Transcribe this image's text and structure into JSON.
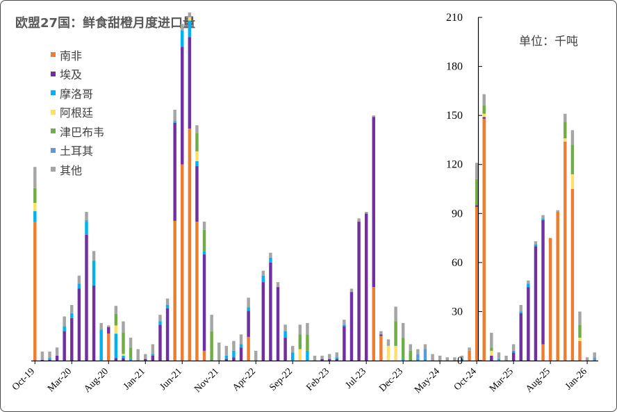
{
  "title": "欧盟27国：鲜食甜橙月度进口量",
  "unit_label": "单位：千吨",
  "chart_data": {
    "type": "bar",
    "stacked": true,
    "yaxis_side": "right",
    "ylim": [
      0,
      210
    ],
    "yticks": [
      0,
      30,
      60,
      90,
      120,
      150,
      180,
      210
    ],
    "legend_position": "top-left",
    "grid": false,
    "categories": [
      "Oct-19",
      "Nov-19",
      "Dec-19",
      "Jan-20",
      "Feb-20",
      "Mar-20",
      "Apr-20",
      "May-20",
      "Jun-20",
      "Jul-20",
      "Aug-20",
      "Sep-20",
      "Oct-20",
      "Nov-20",
      "Dec-20",
      "Jan-21",
      "Feb-21",
      "Mar-21",
      "Apr-21",
      "May-21",
      "Jun-21",
      "Jul-21",
      "Aug-21",
      "Sep-21",
      "Oct-21",
      "Nov-21",
      "Dec-21",
      "Jan-22",
      "Feb-22",
      "Mar-22",
      "Apr-22",
      "May-22",
      "Jun-22",
      "Jul-22",
      "Aug-22",
      "Sep-22",
      "Oct-22",
      "Nov-22",
      "Dec-22",
      "Jan-23",
      "Feb-23",
      "Mar-23",
      "Apr-23",
      "May-23",
      "Jun-23",
      "Jul-23",
      "Aug-23",
      "Sep-23",
      "Oct-23",
      "Nov-23",
      "Dec-23",
      "Jan-24",
      "Feb-24",
      "Mar-24",
      "Apr-24",
      "May-24",
      "Jun-24",
      "Jul-24",
      "Aug-24",
      "Sep-24",
      "Oct-24",
      "Nov-24",
      "Dec-24",
      "Jan-25",
      "Feb-25",
      "Mar-25",
      "Apr-25",
      "May-25",
      "Jun-25",
      "Jul-25",
      "Aug-25",
      "Sep-25",
      "Oct-25",
      "Nov-25",
      "Dec-25",
      "Jan-26",
      "Feb-26"
    ],
    "xtick_labels": [
      {
        "index": 0,
        "label": "Oct-19"
      },
      {
        "index": 5,
        "label": "Mar-20"
      },
      {
        "index": 10,
        "label": "Aug-20"
      },
      {
        "index": 15,
        "label": "Jan-21"
      },
      {
        "index": 20,
        "label": "Jun-21"
      },
      {
        "index": 25,
        "label": "Nov-21"
      },
      {
        "index": 30,
        "label": "Apr-22"
      },
      {
        "index": 35,
        "label": "Sep-22"
      },
      {
        "index": 40,
        "label": "Feb-23"
      },
      {
        "index": 45,
        "label": "Jul-23"
      },
      {
        "index": 50,
        "label": "Dec-23"
      },
      {
        "index": 55,
        "label": "May-24"
      },
      {
        "index": 60,
        "label": "Oct-24"
      },
      {
        "index": 65,
        "label": "Mar-25"
      },
      {
        "index": 70,
        "label": "Aug-25"
      },
      {
        "index": 75,
        "label": "Jan-26"
      }
    ],
    "series": [
      {
        "name": "南非",
        "color": "#ED7D31",
        "values": [
          85,
          0,
          0,
          0,
          0,
          0,
          0,
          0,
          0,
          0,
          16.5,
          0,
          0,
          0,
          0,
          0,
          0,
          0,
          0,
          85.5,
          120,
          142,
          85,
          6,
          0,
          0,
          0,
          0,
          0,
          14.5,
          0,
          0,
          0,
          0,
          0,
          0,
          0,
          0,
          0,
          0,
          0,
          0,
          0,
          0,
          0,
          0,
          45,
          15,
          0,
          0,
          0,
          0,
          0,
          0,
          0,
          0,
          0,
          0,
          0,
          6,
          94,
          148,
          0,
          0,
          0,
          0,
          0,
          0,
          0,
          10,
          75,
          91,
          134,
          105,
          12,
          0,
          0
        ]
      },
      {
        "name": "埃及",
        "color": "#7030A0",
        "values": [
          0,
          0.5,
          0.5,
          3,
          18,
          26,
          44,
          77,
          46,
          0,
          4,
          1.5,
          1.5,
          0,
          0,
          1,
          3,
          22,
          32,
          60,
          72,
          56,
          34,
          59,
          0,
          0,
          1,
          2,
          8,
          16,
          0,
          48,
          60,
          45,
          14,
          0,
          0,
          0,
          0,
          1,
          1,
          1,
          21,
          42,
          85,
          90,
          104,
          1,
          0,
          0,
          0,
          0,
          0,
          0,
          0,
          0,
          0,
          0,
          0,
          0,
          1,
          1,
          3,
          0,
          0,
          5,
          29,
          45,
          70,
          76,
          0,
          0,
          0,
          0,
          0,
          0,
          0
        ]
      },
      {
        "name": "摩洛哥",
        "color": "#00B0F0",
        "values": [
          6.5,
          0,
          1,
          0,
          3,
          3,
          3,
          8,
          15,
          19,
          0,
          15,
          1.5,
          1,
          0,
          0,
          1,
          2,
          2,
          1,
          10,
          10,
          3,
          2,
          0,
          0,
          2,
          4,
          2,
          2,
          0,
          4,
          3,
          0,
          4,
          5,
          0,
          6,
          0,
          0,
          0,
          1,
          1,
          0,
          0,
          0,
          0,
          0,
          0,
          0,
          1,
          0,
          1,
          1,
          0,
          0,
          0,
          0,
          1,
          0,
          0,
          0,
          0,
          1,
          0,
          1,
          1,
          2,
          1,
          1,
          0,
          0,
          0,
          0,
          0,
          0,
          0
        ]
      },
      {
        "name": "阿根廷",
        "color": "#FFE066",
        "values": [
          5,
          0,
          0,
          0,
          0,
          0,
          0,
          0,
          0,
          0,
          0,
          5,
          1,
          0,
          0,
          0,
          0,
          0,
          0,
          0,
          0,
          2,
          6,
          0,
          0,
          0,
          0,
          0,
          0,
          0,
          0,
          0,
          0,
          0,
          0,
          0,
          7,
          0,
          0,
          0,
          0,
          0,
          0,
          0,
          0,
          0,
          0,
          0,
          9,
          9,
          0,
          0,
          0,
          0,
          0,
          0,
          0,
          0,
          0,
          0,
          0,
          2,
          3,
          0,
          0,
          0,
          0,
          0,
          0,
          0,
          0,
          0,
          2,
          9,
          2,
          0,
          0
        ]
      },
      {
        "name": "津巴布韦",
        "color": "#70AD47",
        "values": [
          9,
          0,
          0,
          0,
          0,
          0,
          0,
          0,
          0,
          0,
          0,
          7,
          13,
          7,
          0,
          0,
          0,
          0,
          0,
          0,
          0,
          0,
          11,
          13,
          18,
          0,
          0,
          0,
          0,
          0,
          0,
          0,
          0,
          0,
          0,
          0,
          9,
          10,
          0,
          0,
          0,
          0,
          0,
          0,
          0,
          0,
          0,
          0,
          0,
          15,
          13,
          6,
          0,
          0,
          0,
          0,
          0,
          0,
          0,
          0,
          16,
          5,
          2,
          0,
          0,
          0,
          0,
          0,
          0,
          0,
          0,
          0,
          10,
          18,
          8,
          0,
          0
        ]
      },
      {
        "name": "土耳其",
        "color": "#5B9BD5",
        "values": [
          0,
          0,
          0,
          0,
          0,
          0,
          0,
          1,
          0,
          0,
          0,
          0,
          0,
          0,
          0,
          0,
          0,
          0,
          0,
          0,
          0,
          0,
          0,
          0,
          0,
          0,
          0,
          0,
          0,
          0,
          0,
          0,
          0,
          0,
          0,
          0,
          0,
          0,
          0,
          0,
          0,
          0,
          0,
          0,
          0,
          0,
          0,
          0,
          0,
          0,
          0,
          0,
          3,
          6,
          0,
          0,
          0,
          0,
          0,
          0,
          0,
          0,
          0,
          0,
          0,
          0,
          0,
          0,
          0,
          0,
          0,
          0,
          0,
          0,
          0,
          0,
          2
        ]
      },
      {
        "name": "其他",
        "color": "#A5A5A5",
        "values": [
          13,
          5,
          4,
          5,
          6,
          5,
          5,
          5,
          6,
          4,
          1,
          5,
          7,
          6,
          7,
          3,
          6,
          4,
          4,
          7,
          4,
          3,
          5,
          5,
          10,
          11,
          6,
          6,
          6,
          6,
          6,
          3,
          3,
          3,
          4,
          4,
          6,
          7,
          3,
          2,
          3,
          3,
          3,
          2,
          2,
          1,
          1,
          2,
          4,
          9,
          9,
          4,
          3,
          3,
          4,
          3,
          2,
          2,
          2,
          2,
          10,
          7,
          9,
          4,
          3,
          4,
          4,
          2,
          2,
          2,
          0,
          1,
          5,
          9,
          8,
          2,
          3
        ]
      }
    ]
  }
}
